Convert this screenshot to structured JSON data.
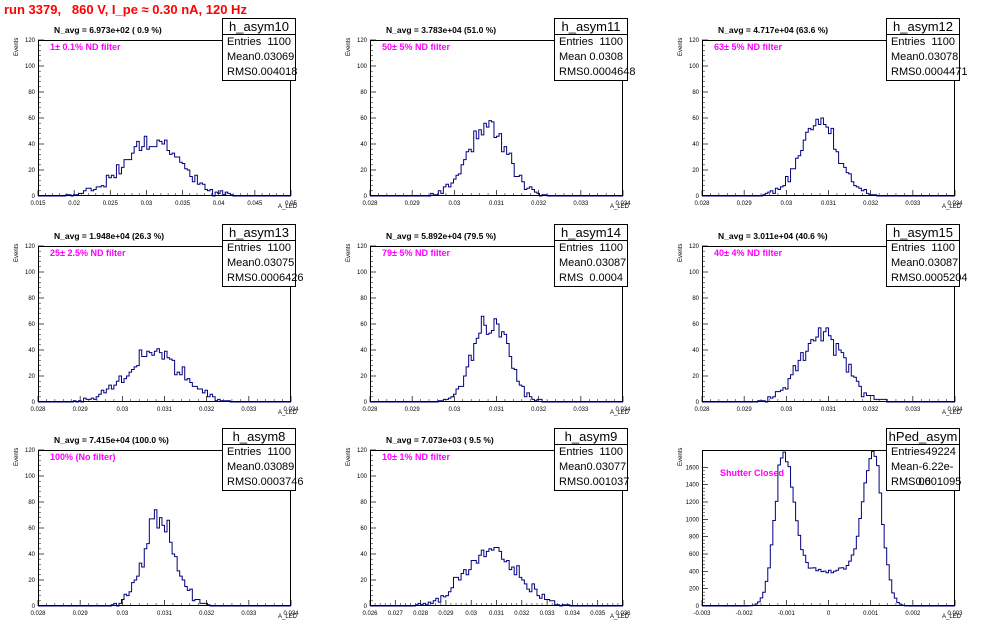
{
  "title": "run 3379,   860 V, I_pe ≈ 0.30 nA, 120 Hz",
  "colors": {
    "title": "#ff0000",
    "label": "#ff00ff",
    "hist": "#000080",
    "frame": "#000000"
  },
  "chart_data": [
    {
      "type": "bar",
      "name": "h_asym10",
      "title": "h_asym10",
      "xlabel": "A_LED",
      "ylabel": "Events",
      "stats": {
        "entries_label": "Entries",
        "entries": "1100",
        "mean_label": "Mean",
        "mean": "0.03069",
        "rms_label": "RMS",
        "rms": "0.004018"
      },
      "n_avg": "N_avg = 6.973e+02 ( 0.9 %)",
      "filter": "1± 0.1% ND filter",
      "xlim": [
        0.015,
        0.05
      ],
      "ylim": [
        0,
        120
      ],
      "xticks": [
        0.015,
        0.02,
        0.025,
        0.03,
        0.035,
        0.04,
        0.045,
        0.05
      ],
      "xtick_labels": [
        "0.015",
        "0.02",
        "0.025",
        "0.03",
        "0.035",
        "0.04",
        "0.045",
        "0.05"
      ],
      "yticks": [
        0,
        20,
        40,
        60,
        80,
        100,
        120
      ],
      "ytick_labels": [
        "0",
        "20",
        "40",
        "60",
        "80",
        "100",
        "120"
      ],
      "mean": 0.03069,
      "rms": 0.004018,
      "peak": 48,
      "bins": 100,
      "seed": 10
    },
    {
      "type": "bar",
      "name": "h_asym11",
      "title": "h_asym11",
      "xlabel": "A_LED",
      "ylabel": "Events",
      "stats": {
        "entries_label": "Entries",
        "entries": "1100",
        "mean_label": "Mean",
        "mean": "0.0308",
        "rms_label": "RMS",
        "rms": "0.0004648"
      },
      "n_avg": "N_avg = 3.783e+04 (51.0 %)",
      "filter": "50± 5% ND filter",
      "xlim": [
        0.028,
        0.034
      ],
      "ylim": [
        0,
        120
      ],
      "xticks": [
        0.028,
        0.029,
        0.03,
        0.031,
        0.032,
        0.033,
        0.034
      ],
      "xtick_labels": [
        "0.028",
        "0.029",
        "0.03",
        "0.031",
        "0.032",
        "0.033",
        "0.034"
      ],
      "yticks": [
        0,
        20,
        40,
        60,
        80,
        100,
        120
      ],
      "ytick_labels": [
        "0",
        "20",
        "40",
        "60",
        "80",
        "100",
        "120"
      ],
      "mean": 0.0308,
      "rms": 0.0004648,
      "peak": 64,
      "bins": 100,
      "seed": 11
    },
    {
      "type": "bar",
      "name": "h_asym12",
      "title": "h_asym12",
      "xlabel": "A_LED",
      "ylabel": "Events",
      "stats": {
        "entries_label": "Entries",
        "entries": "1100",
        "mean_label": "Mean",
        "mean": "0.03078",
        "rms_label": "RMS",
        "rms": "0.0004471"
      },
      "n_avg": "N_avg = 4.717e+04 (63.6 %)",
      "filter": "63± 5% ND filter",
      "xlim": [
        0.028,
        0.034
      ],
      "ylim": [
        0,
        120
      ],
      "xticks": [
        0.028,
        0.029,
        0.03,
        0.031,
        0.032,
        0.033,
        0.034
      ],
      "xtick_labels": [
        "0.028",
        "0.029",
        "0.03",
        "0.031",
        "0.032",
        "0.033",
        "0.034"
      ],
      "yticks": [
        0,
        20,
        40,
        60,
        80,
        100,
        120
      ],
      "ytick_labels": [
        "0",
        "20",
        "40",
        "60",
        "80",
        "100",
        "120"
      ],
      "mean": 0.03078,
      "rms": 0.0004471,
      "peak": 68,
      "bins": 100,
      "seed": 12
    },
    {
      "type": "bar",
      "name": "h_asym13",
      "title": "h_asym13",
      "xlabel": "A_LED",
      "ylabel": "Events",
      "stats": {
        "entries_label": "Entries",
        "entries": "1100",
        "mean_label": "Mean",
        "mean": "0.03075",
        "rms_label": "RMS",
        "rms": "0.0006426"
      },
      "n_avg": "N_avg = 1.948e+04 (26.3 %)",
      "filter": "25± 2.5% ND filter",
      "xlim": [
        0.028,
        0.034
      ],
      "ylim": [
        0,
        120
      ],
      "xticks": [
        0.028,
        0.029,
        0.03,
        0.031,
        0.032,
        0.033,
        0.034
      ],
      "xtick_labels": [
        "0.028",
        "0.029",
        "0.03",
        "0.031",
        "0.032",
        "0.033",
        "0.034"
      ],
      "yticks": [
        0,
        20,
        40,
        60,
        80,
        100,
        120
      ],
      "ytick_labels": [
        "0",
        "20",
        "40",
        "60",
        "80",
        "100",
        "120"
      ],
      "mean": 0.03075,
      "rms": 0.0006426,
      "peak": 45,
      "bins": 100,
      "seed": 13
    },
    {
      "type": "bar",
      "name": "h_asym14",
      "title": "h_asym14",
      "xlabel": "A_LED",
      "ylabel": "Events",
      "stats": {
        "entries_label": "Entries",
        "entries": "1100",
        "mean_label": "Mean",
        "mean": "0.03087",
        "rms_label": "RMS",
        "rms": "0.0004"
      },
      "n_avg": "N_avg = 5.892e+04 (79.5 %)",
      "filter": "79± 5% ND filter",
      "xlim": [
        0.028,
        0.034
      ],
      "ylim": [
        0,
        120
      ],
      "xticks": [
        0.028,
        0.029,
        0.03,
        0.031,
        0.032,
        0.033,
        0.034
      ],
      "xtick_labels": [
        "0.028",
        "0.029",
        "0.03",
        "0.031",
        "0.032",
        "0.033",
        "0.034"
      ],
      "yticks": [
        0,
        20,
        40,
        60,
        80,
        100,
        120
      ],
      "ytick_labels": [
        "0",
        "20",
        "40",
        "60",
        "80",
        "100",
        "120"
      ],
      "mean": 0.03087,
      "rms": 0.0004,
      "peak": 76,
      "bins": 100,
      "seed": 14
    },
    {
      "type": "bar",
      "name": "h_asym15",
      "title": "h_asym15",
      "xlabel": "A_LED",
      "ylabel": "Events",
      "stats": {
        "entries_label": "Entries",
        "entries": "1100",
        "mean_label": "Mean",
        "mean": "0.03087",
        "rms_label": "RMS",
        "rms": "0.0005204"
      },
      "n_avg": "N_avg = 3.011e+04 (40.6 %)",
      "filter": "40± 4% ND filter",
      "xlim": [
        0.028,
        0.034
      ],
      "ylim": [
        0,
        120
      ],
      "xticks": [
        0.028,
        0.029,
        0.03,
        0.031,
        0.032,
        0.033,
        0.034
      ],
      "xtick_labels": [
        "0.028",
        "0.029",
        "0.03",
        "0.031",
        "0.032",
        "0.033",
        "0.034"
      ],
      "yticks": [
        0,
        20,
        40,
        60,
        80,
        100,
        120
      ],
      "ytick_labels": [
        "0",
        "20",
        "40",
        "60",
        "80",
        "100",
        "120"
      ],
      "mean": 0.03087,
      "rms": 0.0005204,
      "peak": 62,
      "bins": 100,
      "seed": 15
    },
    {
      "type": "bar",
      "name": "h_asym8",
      "title": "h_asym8",
      "xlabel": "A_LED",
      "ylabel": "Events",
      "stats": {
        "entries_label": "Entries",
        "entries": "1100",
        "mean_label": "Mean",
        "mean": "0.03089",
        "rms_label": "RMS",
        "rms": "0.0003746"
      },
      "n_avg": "N_avg = 7.415e+04 (100.0 %)",
      "filter": "100% (No filter)",
      "xlim": [
        0.028,
        0.034
      ],
      "ylim": [
        0,
        120
      ],
      "xticks": [
        0.028,
        0.029,
        0.03,
        0.031,
        0.032,
        0.033,
        0.034
      ],
      "xtick_labels": [
        "0.028",
        "0.029",
        "0.03",
        "0.031",
        "0.032",
        "0.033",
        "0.034"
      ],
      "yticks": [
        0,
        20,
        40,
        60,
        80,
        100,
        120
      ],
      "ytick_labels": [
        "0",
        "20",
        "40",
        "60",
        "80",
        "100",
        "120"
      ],
      "mean": 0.03089,
      "rms": 0.0003746,
      "peak": 76,
      "bins": 100,
      "seed": 8
    },
    {
      "type": "bar",
      "name": "h_asym9",
      "title": "h_asym9",
      "xlabel": "A_LED",
      "ylabel": "Events",
      "stats": {
        "entries_label": "Entries",
        "entries": "1100",
        "mean_label": "Mean",
        "mean": "0.03077",
        "rms_label": "RMS",
        "rms": "0.001037"
      },
      "n_avg": "N_avg = 7.073e+03 ( 9.5 %)",
      "filter": "10± 1% ND filter",
      "xlim": [
        0.026,
        0.036
      ],
      "ylim": [
        0,
        120
      ],
      "xticks": [
        0.026,
        0.027,
        0.028,
        0.029,
        0.03,
        0.031,
        0.032,
        0.033,
        0.034,
        0.035,
        0.036
      ],
      "xtick_labels": [
        "0.026",
        "0.027",
        "0.028",
        "0.029",
        "0.03",
        "0.031",
        "0.032",
        "0.033",
        "0.034",
        "0.035",
        "0.036"
      ],
      "yticks": [
        0,
        20,
        40,
        60,
        80,
        100,
        120
      ],
      "ytick_labels": [
        "0",
        "20",
        "40",
        "60",
        "80",
        "100",
        "120"
      ],
      "mean": 0.03077,
      "rms": 0.001037,
      "peak": 50,
      "bins": 100,
      "seed": 9
    },
    {
      "type": "bar",
      "name": "hPed_asym",
      "title": "hPed_asym",
      "xlabel": "A_LED",
      "ylabel": "Events",
      "stats": {
        "entries_label": "Entries",
        "entries": "49224",
        "mean_label": "Mean",
        "mean": "-6.22e-06",
        "rms_label": "RMS",
        "rms": "0.001095"
      },
      "n_avg": "",
      "filter": "Shutter Closed",
      "xlim": [
        -0.003,
        0.003
      ],
      "ylim": [
        0,
        1800
      ],
      "xticks": [
        -0.003,
        -0.002,
        -0.001,
        0,
        0.001,
        0.002,
        0.003
      ],
      "xtick_labels": [
        "-0.003",
        "-0.002",
        "-0.001",
        "0",
        "0.001",
        "0.002",
        "0.003"
      ],
      "yticks": [
        0,
        200,
        400,
        600,
        800,
        1000,
        1200,
        1400,
        1600
      ],
      "ytick_labels": [
        "0",
        "200",
        "400",
        "600",
        "800",
        "1000",
        "1200",
        "1400",
        "1600"
      ],
      "bimodal": true,
      "peak": 1750,
      "bins": 100,
      "seed": 99
    }
  ]
}
